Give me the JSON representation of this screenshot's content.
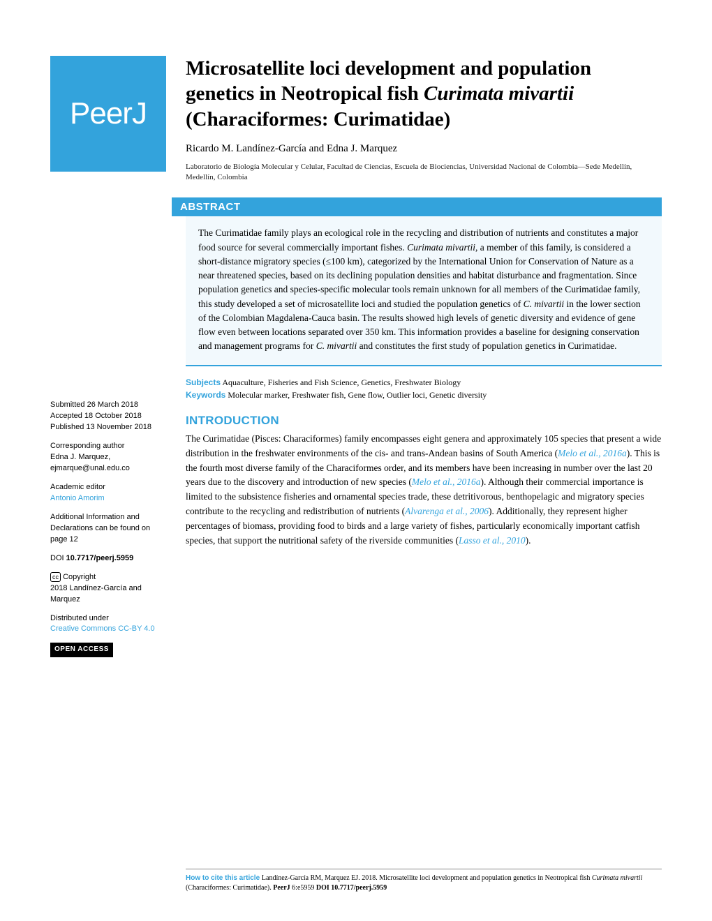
{
  "logo": {
    "text": "PeerJ"
  },
  "title": {
    "line1": "Microsatellite loci development and population genetics in Neotropical fish ",
    "species": "Curimata mivartii",
    "line2": " (Characiformes: Curimatidae)"
  },
  "authors": "Ricardo M. Landínez-García and Edna J. Marquez",
  "affiliation": "Laboratorio de Biología Molecular y Celular, Facultad de Ciencias, Escuela de Biociencias, Universidad Nacional de Colombia—Sede Medellín, Medellín, Colombia",
  "abstract": {
    "heading": "ABSTRACT",
    "p1a": "The Curimatidae family plays an ecological role in the recycling and distribution of nutrients and constitutes a major food source for several commercially important fishes. ",
    "p1species": "Curimata mivartii",
    "p1b": ", a member of this family, is considered a short-distance migratory species (≤100 km), categorized by the International Union for Conservation of Nature as a near threatened species, based on its declining population densities and habitat disturbance and fragmentation. Since population genetics and species-specific molecular tools remain unknown for all members of the Curimatidae family, this study developed a set of microsatellite loci and studied the population genetics of ",
    "p1species2": "C. mivartii",
    "p1c": " in the lower section of the Colombian Magdalena-Cauca basin. The results showed high levels of genetic diversity and evidence of gene flow even between locations separated over 350 km. This information provides a baseline for designing conservation and management programs for ",
    "p1species3": "C. mivartii",
    "p1d": " and constitutes the first study of population genetics in Curimatidae."
  },
  "subjects": {
    "label": "Subjects",
    "text": "Aquaculture, Fisheries and Fish Science, Genetics, Freshwater Biology"
  },
  "keywords": {
    "label": "Keywords",
    "text": "Molecular marker, Freshwater fish, Gene flow, Outlier loci, Genetic diversity"
  },
  "sidebar": {
    "submitted_label": "Submitted ",
    "submitted_date": "26 March 2018",
    "accepted_label": "Accepted ",
    "accepted_date": "18 October 2018",
    "published_label": "Published ",
    "published_date": "13 November 2018",
    "corr_heading": "Corresponding author",
    "corr_name": "Edna J. Marquez,",
    "corr_email": "ejmarque@unal.edu.co",
    "editor_heading": "Academic editor",
    "editor_name": "Antonio Amorim",
    "addl_info": "Additional Information and Declarations can be found on page 12",
    "doi_label": "DOI ",
    "doi_value": "10.7717/peerj.5959",
    "copyright_label": "Copyright",
    "copyright_text": "2018 Landínez-García and Marquez",
    "dist_heading": "Distributed under",
    "dist_text": "Creative Commons CC-BY 4.0",
    "open_access": "OPEN ACCESS"
  },
  "introduction": {
    "heading": "INTRODUCTION",
    "t1": "The Curimatidae (Pisces: Characiformes) family encompasses eight genera and approximately 105 species that present a wide distribution in the freshwater environments of the cis- and trans-Andean basins of South America (",
    "c1": "Melo et al., 2016a",
    "t2": "). This is the fourth most diverse family of the Characiformes order, and its members have been increasing in number over the last 20 years due to the discovery and introduction of new species (",
    "c2": "Melo et al., 2016a",
    "t3": "). Although their commercial importance is limited to the subsistence fisheries and ornamental species trade, these detritivorous, benthopelagic and migratory species contribute to the recycling and redistribution of nutrients (",
    "c3": "Alvarenga et al., 2006",
    "t4": "). Additionally, they represent higher percentages of biomass, providing food to birds and a large variety of fishes, particularly economically important catfish species, that support the nutritional safety of the riverside communities (",
    "c4": "Lasso et al., 2010",
    "t5": ")."
  },
  "footer": {
    "label": "How to cite this article ",
    "t1": "Landínez-García RM, Marquez EJ. 2018. Microsatellite loci development and population genetics in Neotropical fish ",
    "species": "Curimata mivartii",
    "t2": " (Characiformes: Curimatidae). ",
    "journal": "PeerJ",
    "t3": " 6:e5959 ",
    "doi": "DOI 10.7717/peerj.5959"
  },
  "colors": {
    "brand": "#33a3dc",
    "abstract_bg": "#f2f9fd",
    "text": "#000000"
  }
}
